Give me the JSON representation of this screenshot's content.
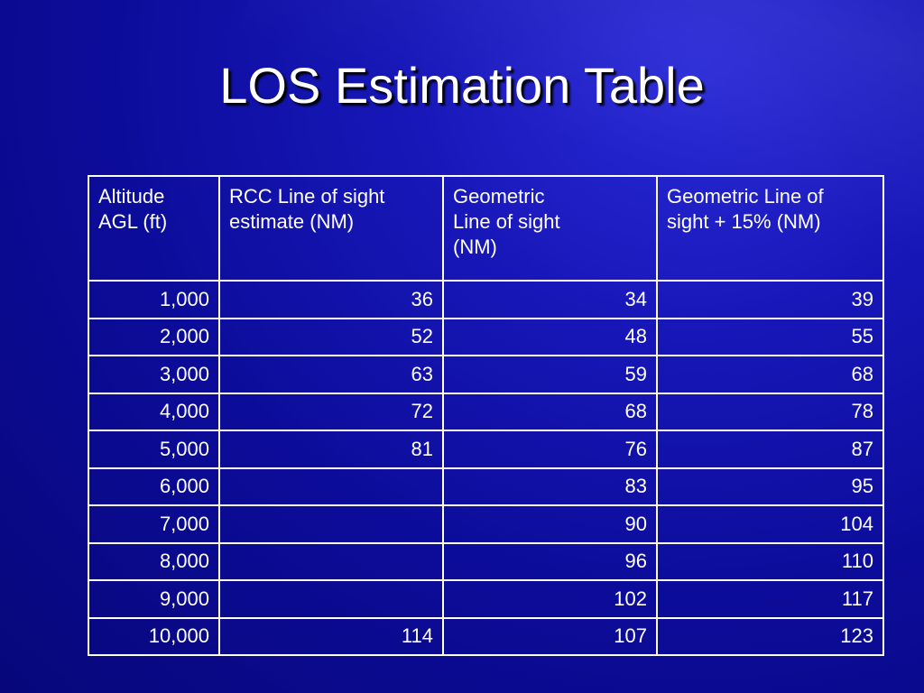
{
  "title": "LOS Estimation Table",
  "table": {
    "header": [
      [
        "Altitude",
        "AGL (ft)"
      ],
      [
        "RCC Line of sight",
        "estimate (NM)"
      ],
      [
        "Geometric",
        "Line of sight",
        "(NM)"
      ],
      [
        "Geometric Line of",
        "sight + 15% (NM)"
      ]
    ],
    "rows": [
      [
        "1,000",
        "36",
        "34",
        "39"
      ],
      [
        "2,000",
        "52",
        "48",
        "55"
      ],
      [
        "3,000",
        "63",
        "59",
        "68"
      ],
      [
        "4,000",
        "72",
        "68",
        "78"
      ],
      [
        "5,000",
        "81",
        "76",
        "87"
      ],
      [
        "6,000",
        null,
        "83",
        "95"
      ],
      [
        "7,000",
        null,
        "90",
        "104"
      ],
      [
        "8,000",
        null,
        "96",
        "110"
      ],
      [
        "9,000",
        null,
        "102",
        "117"
      ],
      [
        "10,000",
        "114",
        "107",
        "123"
      ]
    ]
  }
}
